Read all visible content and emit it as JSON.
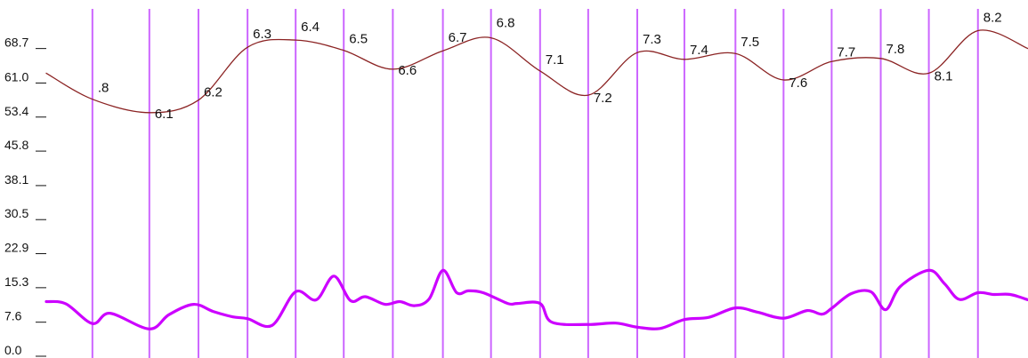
{
  "chart_data": {
    "type": "line",
    "title": "",
    "xlabel": "",
    "ylabel": "",
    "grid": false,
    "legend": "none",
    "ylim": [
      0.0,
      72.0
    ],
    "y_ticks": [
      "0.0",
      "7.6",
      "15.3",
      "22.9",
      "30.5",
      "38.1",
      "45.8",
      "53.4",
      "61.0",
      "68.7"
    ],
    "y_tick_values": [
      0.0,
      7.6,
      15.3,
      22.9,
      30.5,
      38.1,
      45.8,
      53.4,
      61.0,
      68.7
    ],
    "xlim": [
      0.0,
      1.0
    ],
    "markers": [
      {
        "x": 0.047,
        "label": ".8"
      },
      {
        "x": 0.105,
        "label": "6.1"
      },
      {
        "x": 0.155,
        "label": "6.2"
      },
      {
        "x": 0.205,
        "label": "6.3"
      },
      {
        "x": 0.254,
        "label": "6.4"
      },
      {
        "x": 0.303,
        "label": "6.5"
      },
      {
        "x": 0.353,
        "label": "6.6"
      },
      {
        "x": 0.404,
        "label": "6.7"
      },
      {
        "x": 0.453,
        "label": "6.8"
      },
      {
        "x": 0.503,
        "label": "7.1"
      },
      {
        "x": 0.552,
        "label": "7.2"
      },
      {
        "x": 0.602,
        "label": "7.3"
      },
      {
        "x": 0.65,
        "label": "7.4"
      },
      {
        "x": 0.702,
        "label": "7.5"
      },
      {
        "x": 0.751,
        "label": "7.6"
      },
      {
        "x": 0.8,
        "label": "7.7"
      },
      {
        "x": 0.85,
        "label": "7.8"
      },
      {
        "x": 0.899,
        "label": "8.1"
      },
      {
        "x": 0.949,
        "label": "8.2"
      }
    ],
    "series": [
      {
        "color": "#8b2323",
        "x": [
          0.0,
          0.047,
          0.105,
          0.155,
          0.205,
          0.254,
          0.303,
          0.353,
          0.404,
          0.453,
          0.503,
          0.552,
          0.602,
          0.65,
          0.702,
          0.751,
          0.8,
          0.85,
          0.899,
          0.949,
          1.0
        ],
        "values": [
          62.0,
          56.2,
          53.2,
          56.0,
          67.8,
          69.4,
          67.1,
          62.9,
          67.0,
          69.9,
          62.5,
          57.1,
          66.6,
          65.1,
          66.4,
          60.5,
          64.6,
          65.3,
          62.0,
          71.5,
          67.5
        ]
      },
      {
        "color": "#cc00ff",
        "x": [
          0.0,
          0.02,
          0.047,
          0.065,
          0.105,
          0.125,
          0.15,
          0.17,
          0.19,
          0.205,
          0.23,
          0.254,
          0.275,
          0.293,
          0.31,
          0.325,
          0.345,
          0.36,
          0.375,
          0.39,
          0.404,
          0.418,
          0.43,
          0.445,
          0.47,
          0.48,
          0.503,
          0.515,
          0.552,
          0.58,
          0.602,
          0.625,
          0.65,
          0.675,
          0.702,
          0.725,
          0.751,
          0.775,
          0.79,
          0.8,
          0.82,
          0.84,
          0.855,
          0.87,
          0.899,
          0.915,
          0.93,
          0.949,
          0.965,
          0.982,
          1.0
        ],
        "values": [
          11.0,
          10.5,
          6.1,
          8.4,
          4.9,
          8.1,
          10.4,
          8.8,
          7.6,
          7.2,
          5.7,
          13.2,
          11.4,
          16.7,
          11.2,
          12.1,
          10.4,
          11.0,
          10.1,
          11.6,
          18.0,
          13.0,
          13.4,
          13.0,
          10.6,
          10.6,
          10.6,
          6.4,
          5.9,
          6.2,
          5.3,
          5.0,
          7.0,
          7.5,
          9.6,
          8.6,
          7.3,
          9.0,
          8.2,
          9.5,
          12.8,
          13.2,
          9.2,
          14.4,
          18.0,
          15.0,
          11.5,
          13.0,
          12.6,
          12.6,
          11.4
        ]
      }
    ]
  },
  "colors": {
    "background": "#ffffff",
    "marker_line": "#cc66ff",
    "line_upper": "#8b2323",
    "line_lower": "#cc00ff"
  }
}
